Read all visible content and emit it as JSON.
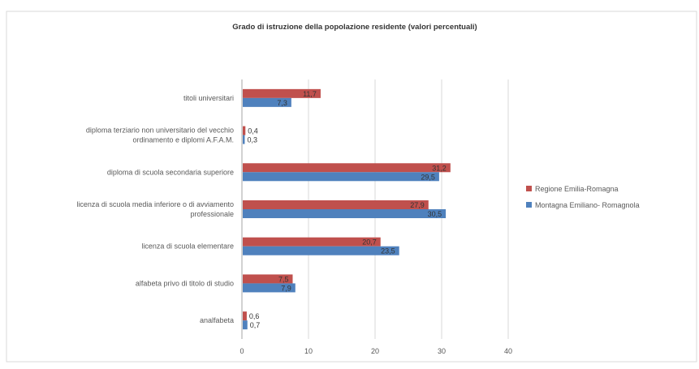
{
  "chart_data": {
    "type": "bar",
    "orientation": "horizontal",
    "title": "Grado di istruzione della popolazione residente (valori percentuali)",
    "xlabel": "",
    "ylabel": "",
    "xlim": [
      0,
      40
    ],
    "x_ticks": [
      0,
      10,
      20,
      30,
      40
    ],
    "grid": true,
    "legend_position": "right",
    "categories": [
      [
        "titoli universitari"
      ],
      [
        "diploma terziario non universitario del vecchio",
        "ordinamento e diplomi A.F.A.M."
      ],
      [
        "diploma di scuola secondaria superiore"
      ],
      [
        "licenza di scuola media inferiore o di avviamento",
        "professionale"
      ],
      [
        "licenza di scuola elementare"
      ],
      [
        "alfabeta privo di titolo di studio"
      ],
      [
        "analfabeta"
      ]
    ],
    "series": [
      {
        "name": "Regione Emilia-Romagna",
        "color": "#c0504d",
        "values": [
          11.7,
          0.4,
          31.2,
          27.9,
          20.7,
          7.5,
          0.6
        ],
        "labels": [
          "11,7",
          "0,4",
          "31,2",
          "27,9",
          "20,7",
          "7,5",
          "0,6"
        ]
      },
      {
        "name": "Montagna Emiliano- Romagnola",
        "color": "#4f81bd",
        "values": [
          7.3,
          0.3,
          29.5,
          30.5,
          23.5,
          7.9,
          0.7
        ],
        "labels": [
          "7,3",
          "0,3",
          "29,5",
          "30,5",
          "23,5",
          "7,9",
          "0,7"
        ]
      }
    ]
  }
}
